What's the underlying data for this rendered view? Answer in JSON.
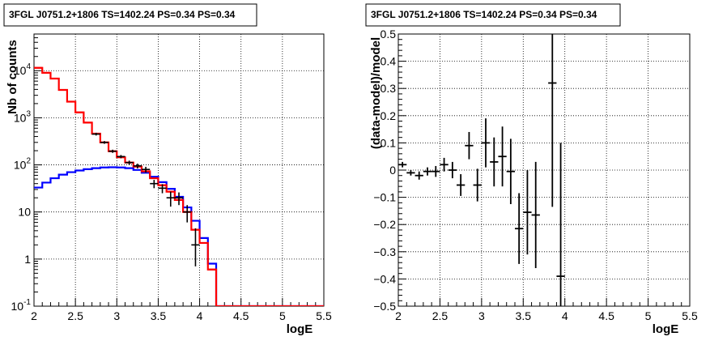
{
  "colors": {
    "data": "#000000",
    "model_total": "#ff0000",
    "model_source": "#0000ff",
    "grid": "#000000"
  },
  "chart_data": [
    {
      "type": "line",
      "title": "3FGL J0751.2+1806 TS=1402.24 PS=0.34 PS=0.34",
      "xlabel": "logE",
      "ylabel": "Nb of counts",
      "xlim": [
        2,
        5.5
      ],
      "ylim": [
        0.1,
        60000
      ],
      "yscale": "log",
      "grid": true,
      "x_ticks": [
        "2",
        "2.5",
        "3",
        "3.5",
        "4",
        "4.5",
        "5",
        "5.5"
      ],
      "y_ticks": [
        {
          "value": 0.1,
          "label": "10",
          "exp": "-1"
        },
        {
          "value": 1,
          "label": "1",
          "exp": ""
        },
        {
          "value": 10,
          "label": "10",
          "exp": ""
        },
        {
          "value": 100,
          "label": "10",
          "exp": "2"
        },
        {
          "value": 1000,
          "label": "10",
          "exp": "3"
        },
        {
          "value": 10000,
          "label": "10",
          "exp": "4"
        }
      ],
      "bin_edges": [
        2.0,
        2.1,
        2.2,
        2.3,
        2.4,
        2.5,
        2.6,
        2.7,
        2.8,
        2.9,
        3.0,
        3.1,
        3.2,
        3.3,
        3.4,
        3.5,
        3.6,
        3.7,
        3.8,
        3.9,
        4.0,
        4.1,
        4.2,
        4.3,
        4.4,
        4.5,
        4.6,
        4.7,
        4.8,
        4.9,
        5.0,
        5.1,
        5.2,
        5.3,
        5.4,
        5.5
      ],
      "series": [
        {
          "role": "source_model",
          "style": "step",
          "values": [
            33,
            42,
            52,
            62,
            70,
            76,
            81,
            85,
            88,
            89,
            88,
            85,
            78,
            68,
            56,
            43,
            31,
            21,
            12.5,
            6.5,
            2.8,
            0.8,
            0.1,
            0.1,
            0.1,
            0.1,
            0.1,
            0.1,
            0.1,
            0.1,
            0.1,
            0.1,
            0.1,
            0.1,
            0.1
          ]
        },
        {
          "role": "total_model",
          "style": "step",
          "values": [
            11500,
            9000,
            6800,
            3900,
            2200,
            1300,
            790,
            460,
            300,
            195,
            145,
            112,
            92,
            73,
            52,
            37,
            27,
            18,
            10,
            4.2,
            2.2,
            0.6,
            0.1,
            0.1,
            0.1,
            0.1,
            0.1,
            0.1,
            0.1,
            0.1,
            0.1,
            0.1,
            0.1,
            0.1,
            0.1
          ]
        },
        {
          "role": "total_model_points",
          "style": "markers",
          "x": [
            2.05,
            2.15,
            2.25,
            2.35,
            2.45,
            2.55,
            2.65,
            2.75,
            2.85,
            2.95,
            3.05,
            3.15,
            3.25,
            3.35,
            3.45,
            3.55,
            3.65,
            3.75,
            3.85,
            3.95,
            4.05,
            4.15
          ],
          "y": [
            11500,
            9000,
            6800,
            3900,
            2200,
            1300,
            790,
            460,
            300,
            195,
            145,
            112,
            92,
            73,
            52,
            37,
            27,
            18,
            10,
            4.2,
            2.2,
            0.6
          ]
        },
        {
          "role": "data",
          "style": "errorbar",
          "x": [
            2.75,
            2.85,
            2.95,
            3.05,
            3.15,
            3.25,
            3.35,
            3.45,
            3.55,
            3.65,
            3.75,
            3.85,
            3.95
          ],
          "y": [
            450,
            300,
            195,
            150,
            112,
            95,
            80,
            40,
            32,
            20,
            20,
            10,
            2
          ],
          "y_lo": [
            420,
            280,
            180,
            138,
            101,
            84,
            69,
            32,
            25,
            13,
            14,
            6,
            0.7
          ],
          "y_hi": [
            480,
            320,
            210,
            162,
            123,
            106,
            91,
            48,
            39,
            27,
            26,
            14,
            4.5
          ]
        }
      ]
    },
    {
      "type": "scatter",
      "title": "3FGL J0751.2+1806 TS=1402.24 PS=0.34 PS=0.34",
      "xlabel": "logE",
      "ylabel": "(data-model)/model",
      "xlim": [
        2,
        5.5
      ],
      "ylim": [
        -0.5,
        0.5
      ],
      "grid": true,
      "x_ticks": [
        "2",
        "2.5",
        "3",
        "3.5",
        "4",
        "4.5",
        "5",
        "5.5"
      ],
      "y_ticks": [
        "−0.5",
        "−0.4",
        "−0.3",
        "−0.2",
        "−0.1",
        "0",
        "0.1",
        "0.2",
        "0.3",
        "0.4",
        "0.5"
      ],
      "series": [
        {
          "role": "residuals",
          "style": "errorbar",
          "x": [
            2.05,
            2.15,
            2.25,
            2.35,
            2.45,
            2.55,
            2.65,
            2.75,
            2.85,
            2.95,
            3.05,
            3.15,
            3.25,
            3.35,
            3.45,
            3.55,
            3.65,
            3.85,
            3.95
          ],
          "y": [
            0.02,
            -0.01,
            -0.02,
            -0.005,
            -0.005,
            0.02,
            0.0,
            -0.055,
            0.09,
            -0.055,
            0.1,
            0.03,
            0.05,
            -0.005,
            -0.215,
            -0.155,
            -0.165,
            0.32,
            -0.39
          ],
          "y_err": [
            0.01,
            0.01,
            0.015,
            0.015,
            0.02,
            0.025,
            0.03,
            0.04,
            0.05,
            0.06,
            0.09,
            0.09,
            0.11,
            0.12,
            0.13,
            0.155,
            0.195,
            0.455,
            0.49
          ]
        }
      ]
    }
  ]
}
